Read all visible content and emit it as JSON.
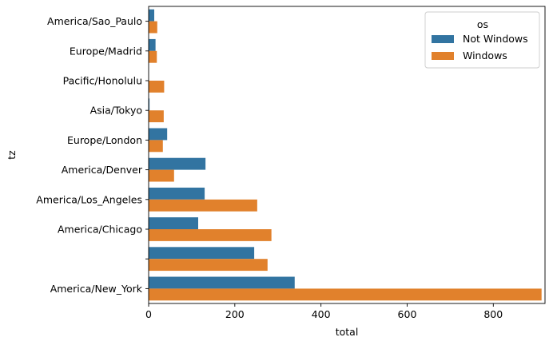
{
  "chart_data": {
    "type": "bar",
    "orientation": "horizontal",
    "xlabel": "total",
    "ylabel": "tz",
    "xlim": [
      0,
      920
    ],
    "xticks": [
      0,
      200,
      400,
      600,
      800
    ],
    "categories": [
      "America/Sao_Paulo",
      "Europe/Madrid",
      "Pacific/Honolulu",
      "Asia/Tokyo",
      "Europe/London",
      "America/Denver",
      "America/Los_Angeles",
      "America/Chicago",
      "",
      "America/New_York"
    ],
    "series": [
      {
        "name": "Not Windows",
        "color": "#3274a1",
        "values": [
          13,
          16,
          0,
          2,
          43,
          132,
          130,
          115,
          245,
          339
        ]
      },
      {
        "name": "Windows",
        "color": "#e1812c",
        "values": [
          20,
          19,
          36,
          35,
          33,
          59,
          252,
          285,
          276,
          912
        ]
      }
    ],
    "legend": {
      "title": "os",
      "placement": "upper-right"
    }
  }
}
